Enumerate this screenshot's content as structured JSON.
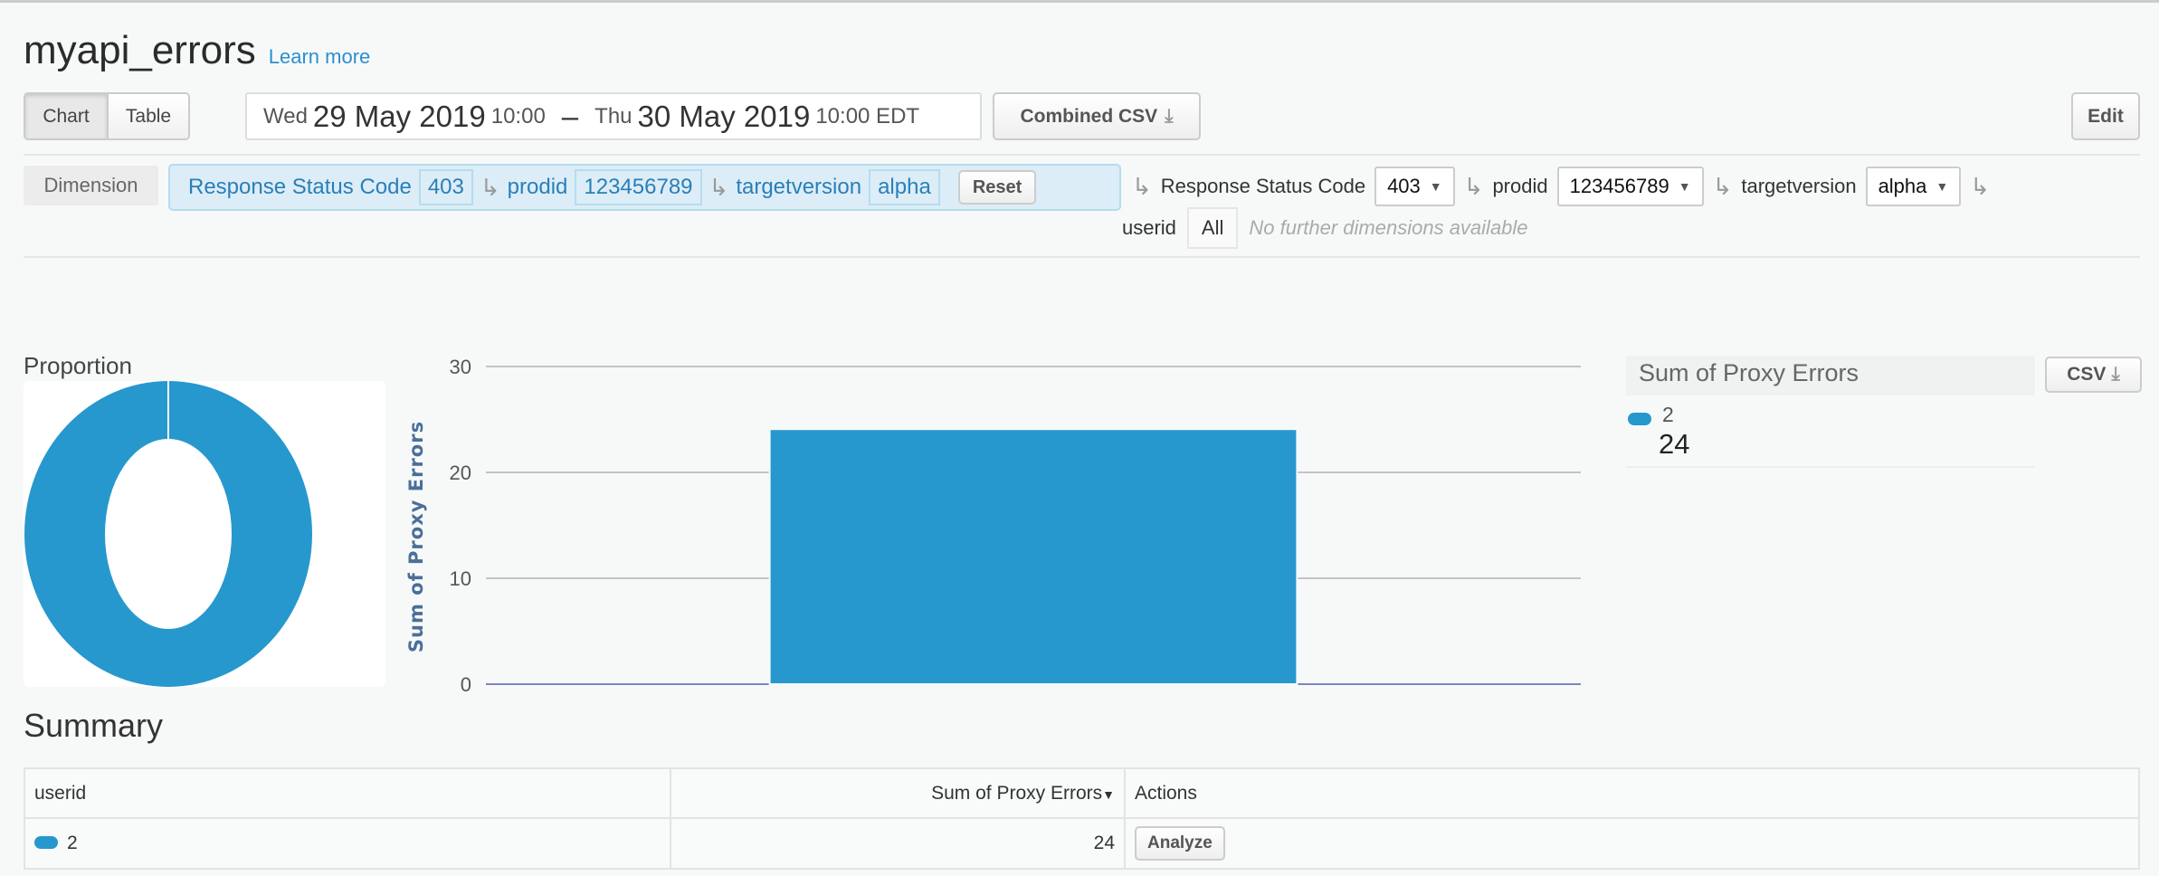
{
  "header": {
    "title": "myapi_errors",
    "learn_more": "Learn more"
  },
  "toolbar": {
    "view_tabs": [
      {
        "label": "Chart",
        "active": true
      },
      {
        "label": "Table",
        "active": false
      }
    ],
    "date_range": {
      "start_day": "Wed",
      "start_date": "29 May 2019",
      "start_time": "10:00",
      "separator": "–",
      "end_day": "Thu",
      "end_date": "30 May 2019",
      "end_time": "10:00 EDT"
    },
    "combined_csv": "Combined CSV",
    "edit": "Edit"
  },
  "dimension": {
    "label": "Dimension",
    "breadcrumb": [
      {
        "name": "Response Status Code",
        "value": "403"
      },
      {
        "name": "prodid",
        "value": "123456789"
      },
      {
        "name": "targetversion",
        "value": "alpha"
      }
    ],
    "reset": "Reset",
    "selectors": [
      {
        "name": "Response Status Code",
        "value": "403"
      },
      {
        "name": "prodid",
        "value": "123456789"
      },
      {
        "name": "targetversion",
        "value": "alpha"
      }
    ],
    "next": {
      "name": "userid",
      "value": "All"
    },
    "no_further": "No further dimensions available"
  },
  "proportion": {
    "title": "Proportion"
  },
  "legend": {
    "title": "Sum of Proxy Errors",
    "csv": "CSV",
    "items": [
      {
        "label": "2",
        "value": "24",
        "color": "#2798cd"
      }
    ]
  },
  "chart_data": {
    "type": "bar",
    "categories": [
      "2"
    ],
    "values": [
      24
    ],
    "ylabel": "Sum of Proxy Errors",
    "ylim": [
      0,
      30
    ],
    "yticks": [
      0,
      10,
      20,
      30
    ],
    "grid": true,
    "color": "#2798cd",
    "donut": {
      "type": "pie",
      "slices": [
        {
          "label": "2",
          "value": 24
        }
      ]
    }
  },
  "summary": {
    "title": "Summary",
    "columns": [
      "userid",
      "Sum of Proxy Errors",
      "Actions"
    ],
    "rows": [
      {
        "userid": "2",
        "value": "24",
        "action": "Analyze"
      }
    ]
  }
}
